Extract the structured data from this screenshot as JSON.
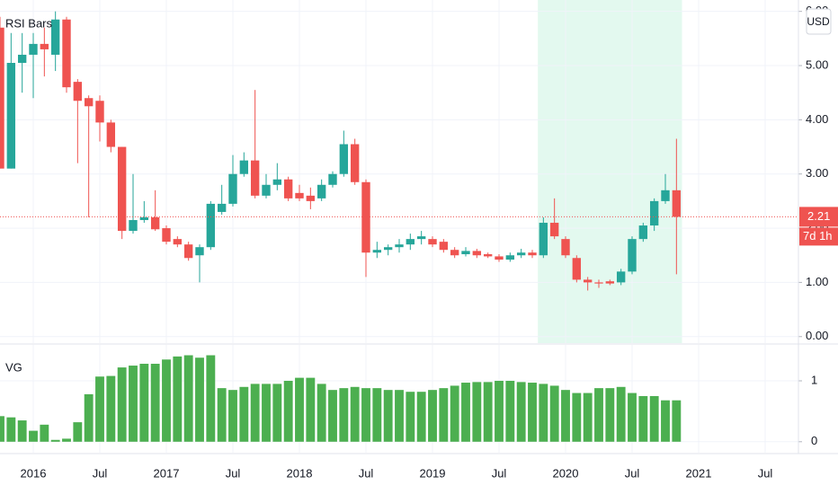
{
  "chart_data": [
    {
      "type": "candlestick",
      "legend": "RSI Bars",
      "currency": "USD",
      "x": [
        "2015-10",
        "2015-11",
        "2015-12",
        "2016-01",
        "2016-02",
        "2016-03",
        "2016-04",
        "2016-05",
        "2016-06",
        "2016-07",
        "2016-08",
        "2016-09",
        "2016-10",
        "2016-11",
        "2016-12",
        "2017-01",
        "2017-02",
        "2017-03",
        "2017-04",
        "2017-05",
        "2017-06",
        "2017-07",
        "2017-08",
        "2017-09",
        "2017-10",
        "2017-11",
        "2017-12",
        "2018-01",
        "2018-02",
        "2018-03",
        "2018-04",
        "2018-05",
        "2018-06",
        "2018-07",
        "2018-08",
        "2018-09",
        "2018-10",
        "2018-11",
        "2018-12",
        "2019-01",
        "2019-02",
        "2019-03",
        "2019-04",
        "2019-05",
        "2019-06",
        "2019-07",
        "2019-08",
        "2019-09",
        "2019-10",
        "2019-11",
        "2019-12",
        "2020-01",
        "2020-02",
        "2020-03",
        "2020-04",
        "2020-05",
        "2020-06",
        "2020-07",
        "2020-08",
        "2020-09",
        "2020-10",
        "2020-11"
      ],
      "open": [
        5.7,
        3.1,
        5.05,
        5.2,
        5.4,
        5.2,
        5.85,
        4.7,
        4.4,
        4.35,
        3.95,
        3.5,
        1.95,
        2.15,
        2.2,
        2.0,
        1.8,
        1.7,
        1.5,
        1.65,
        2.3,
        2.45,
        3.0,
        3.25,
        2.6,
        2.8,
        2.9,
        2.65,
        2.6,
        2.55,
        2.8,
        3.0,
        3.55,
        2.85,
        1.55,
        1.6,
        1.65,
        1.7,
        1.8,
        1.8,
        1.75,
        1.6,
        1.52,
        1.58,
        1.52,
        1.48,
        1.42,
        1.5,
        1.55,
        1.5,
        2.1,
        1.8,
        1.45,
        1.05,
        1.0,
        1.02,
        1.0,
        1.2,
        1.8,
        2.05,
        2.5,
        2.7
      ],
      "high": [
        5.9,
        5.6,
        5.6,
        5.6,
        5.7,
        6.0,
        5.9,
        4.75,
        4.45,
        4.45,
        4.0,
        3.5,
        3.0,
        2.5,
        2.7,
        2.05,
        1.85,
        1.75,
        1.7,
        2.5,
        2.8,
        3.35,
        3.4,
        4.55,
        3.0,
        3.2,
        2.95,
        2.8,
        2.75,
        2.9,
        3.05,
        3.8,
        3.65,
        2.9,
        1.75,
        1.7,
        1.8,
        1.9,
        1.95,
        1.85,
        1.8,
        1.65,
        1.65,
        1.62,
        1.55,
        1.52,
        1.55,
        1.62,
        1.6,
        2.2,
        2.55,
        1.85,
        1.5,
        1.1,
        1.05,
        1.05,
        1.25,
        1.85,
        2.1,
        2.55,
        3.0,
        3.65
      ],
      "low": [
        3.1,
        3.1,
        4.5,
        4.4,
        4.8,
        4.9,
        4.5,
        3.2,
        2.2,
        3.6,
        3.4,
        1.8,
        1.9,
        2.1,
        1.95,
        1.7,
        1.65,
        1.4,
        1.0,
        1.6,
        2.25,
        2.4,
        2.95,
        2.55,
        2.55,
        2.7,
        2.5,
        2.5,
        2.35,
        2.5,
        2.75,
        2.95,
        2.8,
        1.1,
        1.45,
        1.5,
        1.55,
        1.6,
        1.7,
        1.65,
        1.55,
        1.45,
        1.48,
        1.45,
        1.45,
        1.38,
        1.38,
        1.45,
        1.45,
        1.45,
        1.8,
        1.45,
        1.0,
        0.85,
        0.9,
        0.95,
        0.95,
        1.15,
        1.75,
        1.95,
        2.45,
        1.15
      ],
      "close": [
        3.1,
        5.05,
        5.2,
        5.4,
        5.3,
        5.85,
        4.6,
        4.35,
        4.25,
        3.95,
        3.5,
        1.95,
        2.15,
        2.2,
        1.98,
        1.75,
        1.7,
        1.45,
        1.65,
        2.45,
        2.45,
        3.0,
        3.25,
        2.6,
        2.8,
        2.9,
        2.55,
        2.55,
        2.5,
        2.8,
        3.0,
        3.55,
        2.85,
        1.55,
        1.6,
        1.65,
        1.7,
        1.8,
        1.85,
        1.7,
        1.6,
        1.5,
        1.58,
        1.5,
        1.48,
        1.42,
        1.5,
        1.55,
        1.5,
        2.1,
        1.85,
        1.5,
        1.05,
        1.0,
        0.98,
        0.98,
        1.2,
        1.8,
        2.05,
        2.5,
        2.7,
        2.21
      ],
      "up_color": "#26a69a",
      "down_color": "#ef5350",
      "highlight": {
        "from": "2019-11",
        "to": "2020-11",
        "color": "#e3f9ef"
      },
      "last_price": 2.21,
      "countdown": "7d 1h",
      "xlim": [
        "2015-10",
        "2021-10"
      ],
      "ylim": [
        -0.12,
        6.21
      ],
      "yticks": [
        {
          "value": 0,
          "label": "0.00"
        },
        {
          "value": 1,
          "label": "1.00"
        },
        {
          "value": 2,
          "label": "2.00"
        },
        {
          "value": 3,
          "label": "3.00"
        },
        {
          "value": 4,
          "label": "4.00"
        },
        {
          "value": 5,
          "label": "5.00"
        },
        {
          "value": 6,
          "label": "6.00"
        }
      ],
      "grid": true
    },
    {
      "type": "bar",
      "legend": "VG",
      "color": "#4caf50",
      "values": [
        0.42,
        0.4,
        0.35,
        0.18,
        0.28,
        0.03,
        0.05,
        0.32,
        0.78,
        1.07,
        1.08,
        1.22,
        1.25,
        1.28,
        1.28,
        1.35,
        1.4,
        1.42,
        1.38,
        1.42,
        0.88,
        0.85,
        0.9,
        0.95,
        0.95,
        0.95,
        1.0,
        1.05,
        1.05,
        0.95,
        0.85,
        0.88,
        0.9,
        0.88,
        0.88,
        0.85,
        0.85,
        0.82,
        0.82,
        0.85,
        0.88,
        0.92,
        0.97,
        0.98,
        0.98,
        1.0,
        1.0,
        0.98,
        0.97,
        0.95,
        0.92,
        0.85,
        0.8,
        0.8,
        0.88,
        0.88,
        0.9,
        0.8,
        0.75,
        0.75,
        0.68,
        0.68
      ],
      "ylim": [
        -0.18,
        1.59
      ],
      "yticks": [
        0,
        1
      ],
      "xticks": [
        {
          "value": "2016-01",
          "label": "2016"
        },
        {
          "value": "2016-07",
          "label": "Jul"
        },
        {
          "value": "2017-01",
          "label": "2017"
        },
        {
          "value": "2017-07",
          "label": "Jul"
        },
        {
          "value": "2018-01",
          "label": "2018"
        },
        {
          "value": "2018-07",
          "label": "Jul"
        },
        {
          "value": "2019-01",
          "label": "2019"
        },
        {
          "value": "2019-07",
          "label": "Jul"
        },
        {
          "value": "2020-01",
          "label": "2020"
        },
        {
          "value": "2020-07",
          "label": "Jul"
        },
        {
          "value": "2021-01",
          "label": "2021"
        },
        {
          "value": "2021-07",
          "label": "Jul"
        }
      ],
      "grid": true
    }
  ]
}
